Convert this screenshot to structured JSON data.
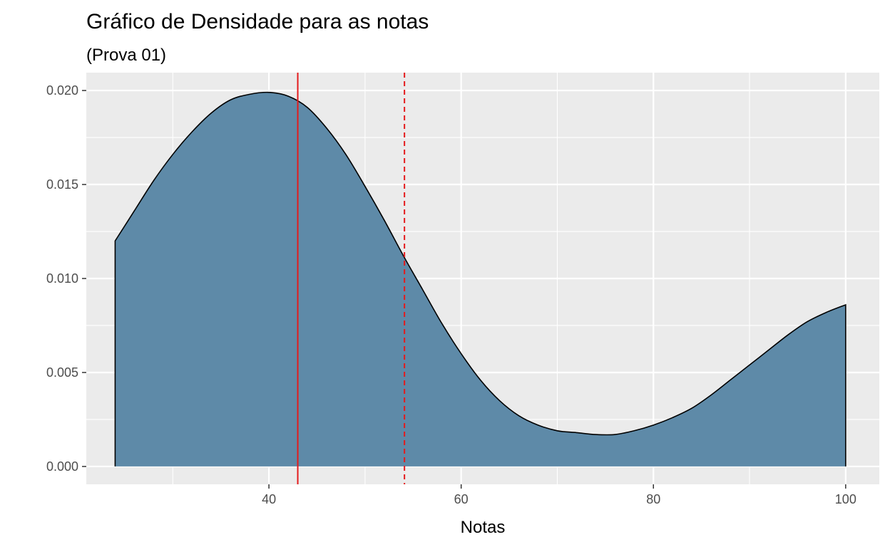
{
  "chart_data": {
    "type": "area",
    "title": "Gráfico de Densidade para as notas",
    "subtitle": "(Prova 01)",
    "xlabel": "Notas",
    "ylabel": "",
    "xlim": [
      21,
      103.5
    ],
    "ylim": [
      -0.00095,
      0.02095
    ],
    "x_ticks": [
      40,
      60,
      80,
      100
    ],
    "x_tick_labels": [
      "40",
      "60",
      "80",
      "100"
    ],
    "y_ticks": [
      0.0,
      0.005,
      0.01,
      0.015,
      0.02
    ],
    "y_tick_labels": [
      "0.000",
      "0.005",
      "0.010",
      "0.015",
      "0.020"
    ],
    "grid": true,
    "fill_color": "#5e8aa8",
    "line_color": "#000000",
    "background_color": "#ebebeb",
    "series": [
      {
        "x": [
          24,
          26,
          28,
          30,
          32,
          34,
          36,
          38,
          40,
          42,
          44,
          46,
          48,
          50,
          52,
          54,
          56,
          58,
          60,
          62,
          64,
          66,
          68,
          70,
          72,
          74,
          76,
          78,
          80,
          82,
          84,
          86,
          88,
          90,
          92,
          94,
          96,
          98,
          100
        ],
        "values": [
          0.012,
          0.0136,
          0.0152,
          0.0166,
          0.0178,
          0.0188,
          0.0195,
          0.0198,
          0.0199,
          0.0197,
          0.0191,
          0.018,
          0.0166,
          0.0149,
          0.0131,
          0.0112,
          0.0094,
          0.0076,
          0.006,
          0.0046,
          0.0035,
          0.0027,
          0.0022,
          0.0019,
          0.0018,
          0.0017,
          0.0017,
          0.0019,
          0.0022,
          0.0026,
          0.0031,
          0.0038,
          0.0046,
          0.0054,
          0.0062,
          0.007,
          0.0077,
          0.0082,
          0.0086
        ]
      }
    ],
    "vlines": [
      {
        "x": 43.0,
        "style": "solid",
        "color": "#e41a1c"
      },
      {
        "x": 54.1,
        "style": "dashed",
        "color": "#e41a1c"
      }
    ]
  }
}
